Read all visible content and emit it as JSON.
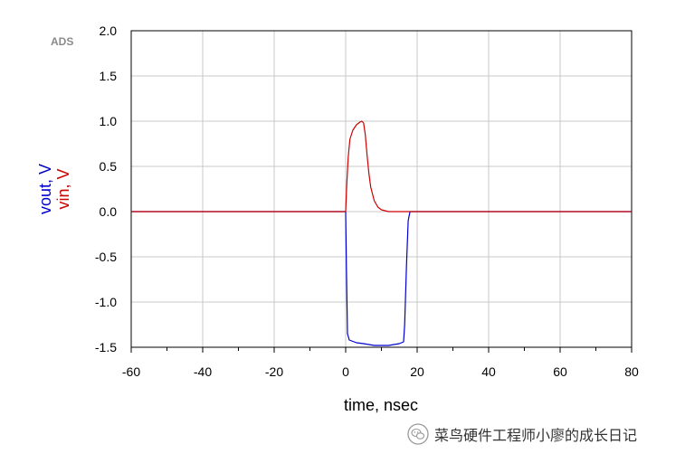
{
  "chart_data": {
    "type": "line",
    "brand_label": "ADS",
    "xlabel": "time, nsec",
    "ylabel_series": [
      "vout, V",
      "vin, V"
    ],
    "xlim": [
      -60,
      80
    ],
    "ylim": [
      -1.5,
      2.0
    ],
    "x_ticks": [
      -60,
      -40,
      -20,
      0,
      20,
      40,
      60,
      80
    ],
    "x_tick_labels": [
      "-60",
      "-40",
      "-20",
      "0",
      "20",
      "40",
      "60",
      "80"
    ],
    "y_ticks": [
      -1.5,
      -1.0,
      -0.5,
      0.0,
      0.5,
      1.0,
      1.5,
      2.0
    ],
    "y_tick_labels": [
      "-1.5",
      "-1.0",
      "-0.5",
      "0.0",
      "0.5",
      "1.0",
      "1.5",
      "2.0"
    ],
    "grid": true,
    "series": [
      {
        "name": "vout, V",
        "color": "#0000cc",
        "x": [
          -60,
          0,
          0.2,
          0.5,
          1,
          3,
          5,
          8,
          12,
          15,
          16.2,
          16.5,
          17,
          17.5,
          18,
          80
        ],
        "y": [
          0,
          0,
          -0.6,
          -1.35,
          -1.42,
          -1.45,
          -1.46,
          -1.48,
          -1.48,
          -1.46,
          -1.44,
          -1.25,
          -0.6,
          -0.1,
          0,
          0
        ]
      },
      {
        "name": "vin, V",
        "color": "#cc0000",
        "x": [
          -60,
          0,
          0.3,
          0.7,
          1.2,
          2,
          3,
          4,
          4.5,
          5,
          5.5,
          6,
          6.5,
          7,
          8,
          9,
          10,
          12,
          14,
          18,
          80
        ],
        "y": [
          0,
          0,
          0.3,
          0.6,
          0.8,
          0.9,
          0.96,
          0.99,
          1.0,
          0.98,
          0.85,
          0.62,
          0.42,
          0.27,
          0.12,
          0.05,
          0.02,
          0.0,
          0.0,
          0.0,
          0
        ]
      }
    ]
  },
  "watermark": {
    "text": "菜鸟硬件工程师小廖的成长日记",
    "icon": "wechat-icon"
  }
}
